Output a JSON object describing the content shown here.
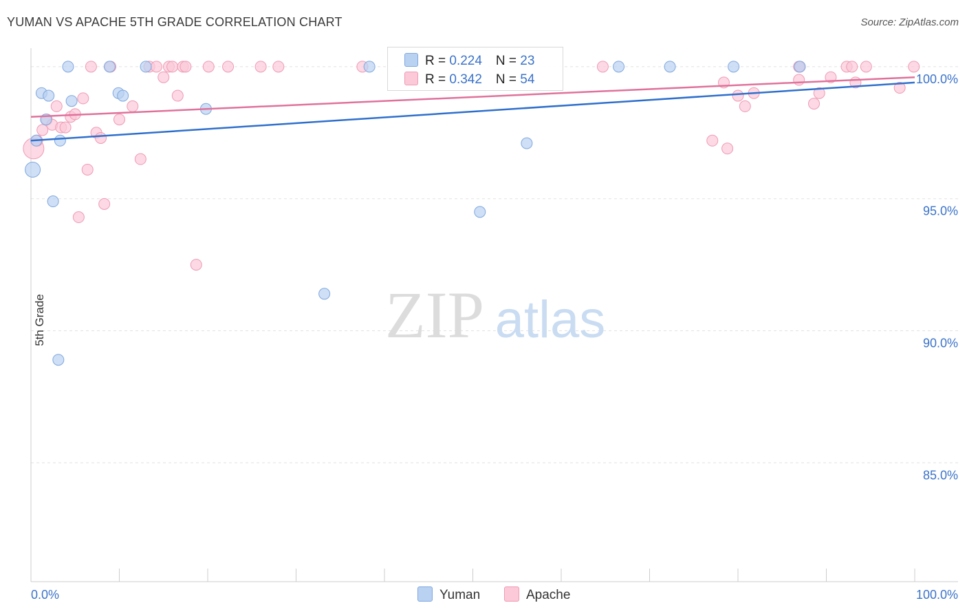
{
  "header": {
    "title": "YUMAN VS APACHE 5TH GRADE CORRELATION CHART",
    "source": "Source: ZipAtlas.com"
  },
  "watermark": {
    "zip": "ZIP",
    "atlas": "atlas"
  },
  "legend": {
    "yuman": {
      "r_label": "R = ",
      "r_value": "0.224",
      "n_label": "N = ",
      "n_value": "23"
    },
    "apache": {
      "r_label": "R = ",
      "r_value": "0.342",
      "n_label": "N = ",
      "n_value": "54"
    }
  },
  "colors": {
    "yuman_fill": "#b9d2f2",
    "yuman_stroke": "#7fa7de",
    "yuman_line": "#2e6fcc",
    "apache_fill": "#fbc9d8",
    "apache_stroke": "#ef9ab4",
    "apache_line": "#e0719a",
    "axis_tick_text": "#3b73c9",
    "grid": "#e2e2e2"
  },
  "chart_data": {
    "type": "scatter",
    "title": "YUMAN VS APACHE 5TH GRADE CORRELATION CHART",
    "xlabel": "",
    "ylabel": "5th Grade",
    "xlim": [
      0,
      100
    ],
    "ylim": [
      80.5,
      100.7
    ],
    "x_tick_labels": [
      "0.0%",
      "100.0%"
    ],
    "y_ticks": [
      {
        "value": 85,
        "label": "85.0%"
      },
      {
        "value": 90,
        "label": "90.0%"
      },
      {
        "value": 95,
        "label": "95.0%"
      },
      {
        "value": 100,
        "label": "100.0%"
      }
    ],
    "series": [
      {
        "name": "Yuman",
        "r": 0.224,
        "n": 23,
        "trend": {
          "x": [
            0,
            100
          ],
          "y": [
            97.2,
            99.4
          ]
        },
        "points": [
          {
            "x": 0.2,
            "y": 96.1,
            "s": 11
          },
          {
            "x": 0.6,
            "y": 97.2,
            "s": 8
          },
          {
            "x": 1.2,
            "y": 99.0,
            "s": 8
          },
          {
            "x": 1.7,
            "y": 98.0,
            "s": 8
          },
          {
            "x": 2.0,
            "y": 98.9,
            "s": 8
          },
          {
            "x": 2.5,
            "y": 94.9,
            "s": 8
          },
          {
            "x": 3.1,
            "y": 88.9,
            "s": 8
          },
          {
            "x": 3.3,
            "y": 97.2,
            "s": 8
          },
          {
            "x": 4.2,
            "y": 100.0,
            "s": 8
          },
          {
            "x": 4.6,
            "y": 98.7,
            "s": 8
          },
          {
            "x": 8.9,
            "y": 100.0,
            "s": 8
          },
          {
            "x": 9.9,
            "y": 99.0,
            "s": 8
          },
          {
            "x": 10.4,
            "y": 98.9,
            "s": 8
          },
          {
            "x": 13.0,
            "y": 100.0,
            "s": 8
          },
          {
            "x": 19.8,
            "y": 98.4,
            "s": 8
          },
          {
            "x": 33.2,
            "y": 91.4,
            "s": 8
          },
          {
            "x": 38.3,
            "y": 100.0,
            "s": 8
          },
          {
            "x": 50.8,
            "y": 94.5,
            "s": 8
          },
          {
            "x": 56.1,
            "y": 97.1,
            "s": 8
          },
          {
            "x": 66.5,
            "y": 100.0,
            "s": 8
          },
          {
            "x": 72.3,
            "y": 100.0,
            "s": 8
          },
          {
            "x": 79.5,
            "y": 100.0,
            "s": 8
          },
          {
            "x": 87.0,
            "y": 100.0,
            "s": 8
          }
        ]
      },
      {
        "name": "Apache",
        "r": 0.342,
        "n": 54,
        "trend": {
          "x": [
            0,
            100
          ],
          "y": [
            98.1,
            99.6
          ]
        },
        "points": [
          {
            "x": 0.3,
            "y": 96.9,
            "s": 15
          },
          {
            "x": 0.7,
            "y": 97.2,
            "s": 8
          },
          {
            "x": 1.3,
            "y": 97.6,
            "s": 8
          },
          {
            "x": 1.8,
            "y": 98.0,
            "s": 8
          },
          {
            "x": 2.4,
            "y": 97.8,
            "s": 8
          },
          {
            "x": 2.9,
            "y": 98.5,
            "s": 8
          },
          {
            "x": 3.4,
            "y": 97.7,
            "s": 8
          },
          {
            "x": 3.9,
            "y": 97.7,
            "s": 8
          },
          {
            "x": 4.5,
            "y": 98.1,
            "s": 8
          },
          {
            "x": 5.0,
            "y": 98.2,
            "s": 8
          },
          {
            "x": 5.4,
            "y": 94.3,
            "s": 8
          },
          {
            "x": 5.9,
            "y": 98.8,
            "s": 8
          },
          {
            "x": 6.4,
            "y": 96.1,
            "s": 8
          },
          {
            "x": 6.8,
            "y": 100.0,
            "s": 8
          },
          {
            "x": 7.4,
            "y": 97.5,
            "s": 8
          },
          {
            "x": 7.9,
            "y": 97.3,
            "s": 8
          },
          {
            "x": 8.3,
            "y": 94.8,
            "s": 8
          },
          {
            "x": 9.0,
            "y": 100.0,
            "s": 8
          },
          {
            "x": 10.0,
            "y": 98.0,
            "s": 8
          },
          {
            "x": 11.5,
            "y": 98.5,
            "s": 8
          },
          {
            "x": 12.4,
            "y": 96.5,
            "s": 8
          },
          {
            "x": 13.4,
            "y": 100.0,
            "s": 8
          },
          {
            "x": 14.2,
            "y": 100.0,
            "s": 8
          },
          {
            "x": 15.0,
            "y": 99.6,
            "s": 8
          },
          {
            "x": 15.6,
            "y": 100.0,
            "s": 8
          },
          {
            "x": 16.0,
            "y": 100.0,
            "s": 8
          },
          {
            "x": 16.6,
            "y": 98.9,
            "s": 8
          },
          {
            "x": 17.2,
            "y": 100.0,
            "s": 8
          },
          {
            "x": 17.5,
            "y": 100.0,
            "s": 8
          },
          {
            "x": 18.7,
            "y": 92.5,
            "s": 8
          },
          {
            "x": 20.1,
            "y": 100.0,
            "s": 8
          },
          {
            "x": 22.3,
            "y": 100.0,
            "s": 8
          },
          {
            "x": 26.0,
            "y": 100.0,
            "s": 8
          },
          {
            "x": 28.0,
            "y": 100.0,
            "s": 8
          },
          {
            "x": 37.5,
            "y": 100.0,
            "s": 8
          },
          {
            "x": 64.7,
            "y": 100.0,
            "s": 8
          },
          {
            "x": 77.1,
            "y": 97.2,
            "s": 8
          },
          {
            "x": 78.4,
            "y": 99.4,
            "s": 8
          },
          {
            "x": 78.8,
            "y": 96.9,
            "s": 8
          },
          {
            "x": 80.0,
            "y": 98.9,
            "s": 8
          },
          {
            "x": 80.8,
            "y": 98.5,
            "s": 8
          },
          {
            "x": 81.8,
            "y": 99.0,
            "s": 8
          },
          {
            "x": 86.9,
            "y": 99.5,
            "s": 8
          },
          {
            "x": 87.0,
            "y": 100.0,
            "s": 8
          },
          {
            "x": 88.6,
            "y": 98.6,
            "s": 8
          },
          {
            "x": 89.2,
            "y": 99.0,
            "s": 8
          },
          {
            "x": 90.5,
            "y": 99.6,
            "s": 8
          },
          {
            "x": 92.3,
            "y": 100.0,
            "s": 8
          },
          {
            "x": 92.9,
            "y": 100.0,
            "s": 8
          },
          {
            "x": 93.3,
            "y": 99.4,
            "s": 8
          },
          {
            "x": 94.5,
            "y": 100.0,
            "s": 8
          },
          {
            "x": 98.3,
            "y": 99.2,
            "s": 8
          },
          {
            "x": 99.9,
            "y": 100.0,
            "s": 8
          },
          {
            "x": 86.9,
            "y": 100.0,
            "s": 8
          }
        ]
      }
    ],
    "legend_position": "top-center"
  }
}
